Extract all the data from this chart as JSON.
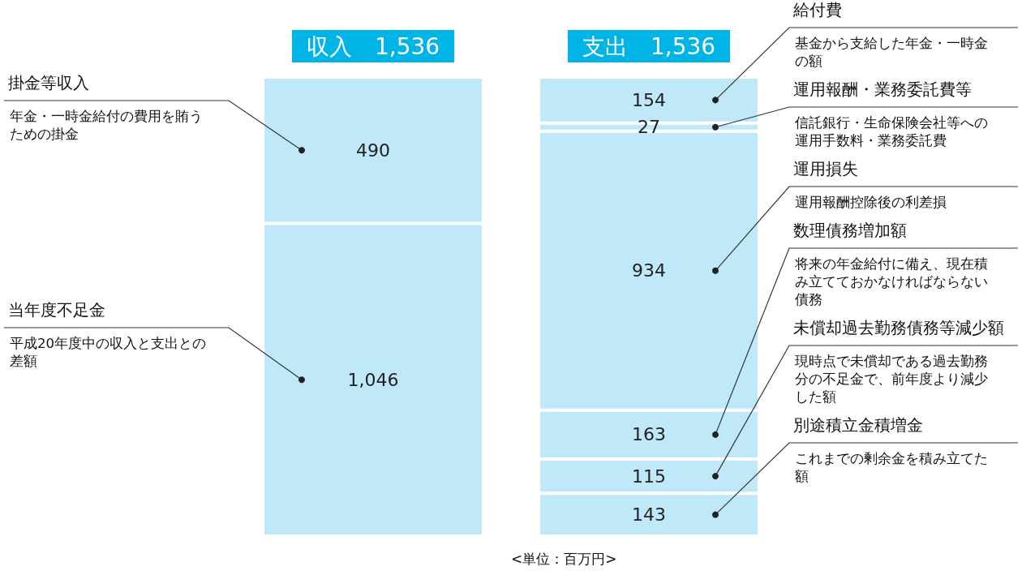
{
  "chart_data": {
    "type": "bar",
    "stacked": true,
    "categories": [
      "収入",
      "支出"
    ],
    "totals": [
      "1,536",
      "1,536"
    ],
    "series": [
      {
        "name": "当年度不足金",
        "color": "#bfe8f8",
        "values": [
          1046,
          null
        ],
        "value_labels": [
          "1,046",
          null
        ]
      },
      {
        "name": "掛金等収入",
        "color": "#bfe8f8",
        "values": [
          490,
          null
        ],
        "value_labels": [
          "490",
          null
        ]
      },
      {
        "name": "別途積立金積増金",
        "color": "#bfe8f8",
        "values": [
          null,
          143
        ],
        "value_labels": [
          null,
          "143"
        ]
      },
      {
        "name": "未償却過去勤務債務等減少額",
        "color": "#bfe8f8",
        "values": [
          null,
          115
        ],
        "value_labels": [
          null,
          "115"
        ]
      },
      {
        "name": "数理債務増加額",
        "color": "#bfe8f8",
        "values": [
          null,
          163
        ],
        "value_labels": [
          null,
          "163"
        ]
      },
      {
        "name": "運用損失",
        "color": "#bfe8f8",
        "values": [
          null,
          934
        ],
        "value_labels": [
          null,
          "934"
        ]
      },
      {
        "name": "運用報酬・業務委託費等",
        "color": "#bfe8f8",
        "values": [
          null,
          27
        ],
        "value_labels": [
          null,
          "27"
        ]
      },
      {
        "name": "給付費",
        "color": "#bfe8f8",
        "values": [
          null,
          154
        ],
        "value_labels": [
          null,
          "154"
        ]
      }
    ],
    "annotations": [
      "平成20年度中の収入と支出との差額",
      "年金・一時金給付の費用を賄うための掛金",
      "これまでの剰余金を積み立てた額",
      "現時点で未償却である過去勤務分の不足金で、前年度より減少した額",
      "将来の年金給付に備え、現在積み立てておかなければならない債務",
      "運用報酬控除後の利差損",
      "信託銀行・生命保険会社等への運用手数料・業務委託費",
      "基金から支給した年金・一時金の額",
      "<単位：百万円>"
    ],
    "legend": false,
    "grid": false
  }
}
